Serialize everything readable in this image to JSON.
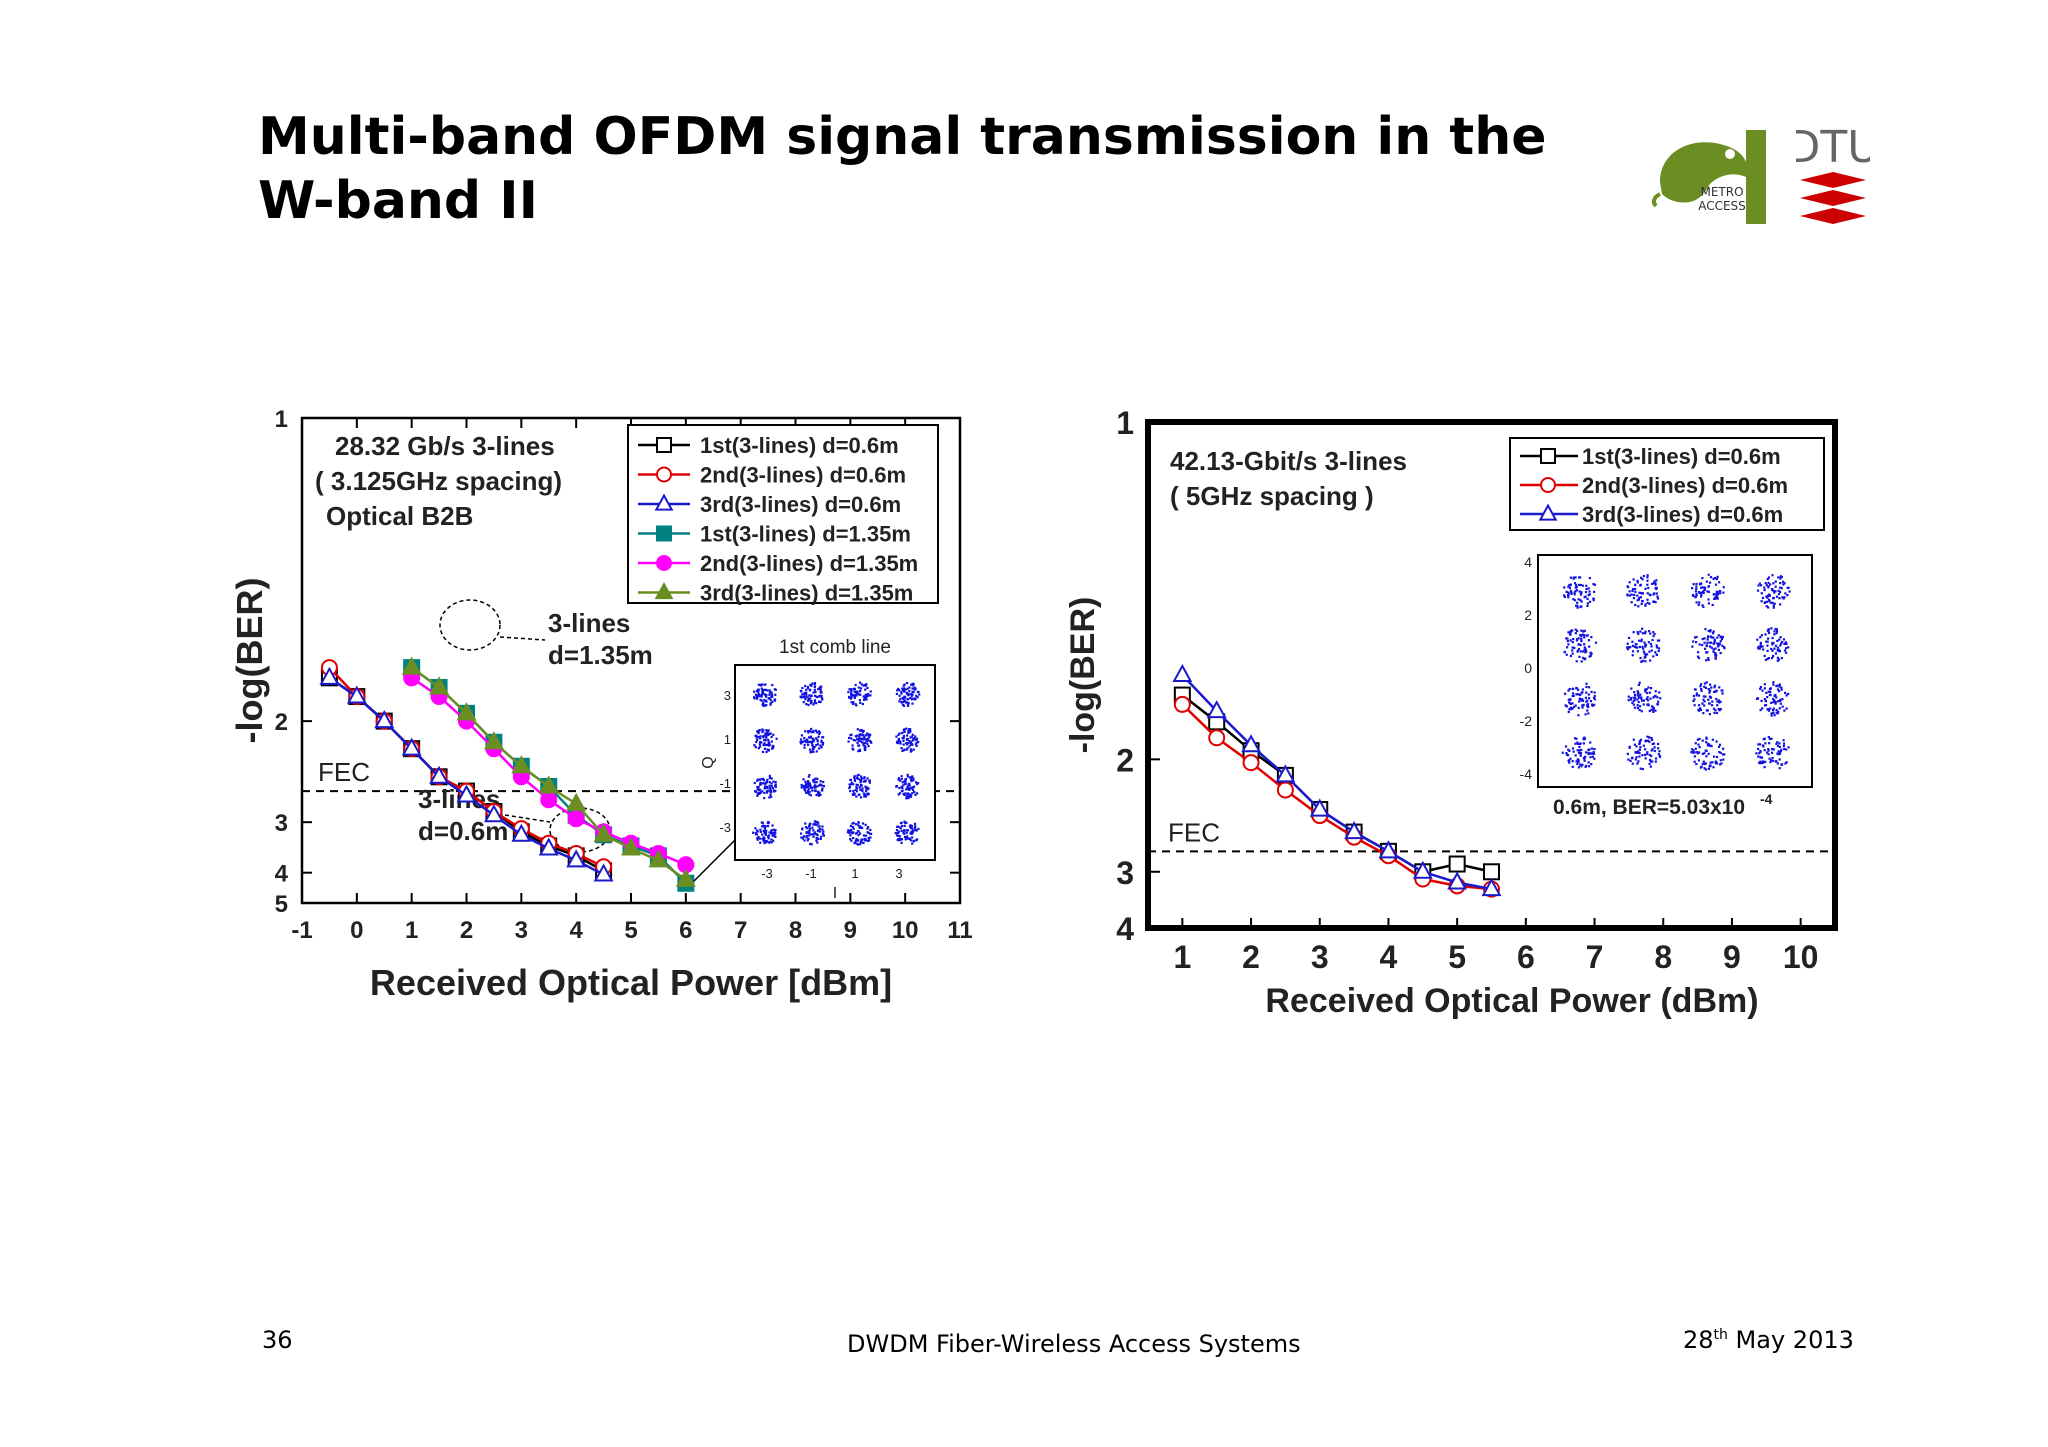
{
  "slide": {
    "title_line1": "Multi-band OFDM signal transmission in the",
    "title_line2": "W-band II",
    "logo_metro_text1": "METRO",
    "logo_metro_text2": "ACCESS",
    "logo_dtu_text": "DTU",
    "footer_page": "36",
    "footer_center": "DWDM Fiber-Wireless Access  Systems",
    "footer_date_day": "28",
    "footer_date_sup": "th",
    "footer_date_rest": " May 2013"
  },
  "chart_data": [
    {
      "type": "line",
      "title": "",
      "xlabel": "Received Optical Power [dBm]",
      "ylabel": "-log(BER)",
      "xlim": [
        -1,
        11
      ],
      "ylim": [
        1,
        5
      ],
      "y_scale": "reciprocal (top=1, bottom=5)",
      "xticks": [
        "-1",
        "0",
        "1",
        "2",
        "3",
        "4",
        "5",
        "6",
        "7",
        "8",
        "9",
        "10",
        "11"
      ],
      "yticks": [
        "1",
        "2",
        "3",
        "4",
        "5"
      ],
      "legend_position": "top-right",
      "annotations": {
        "header1": "28.32 Gb/s 3-lines",
        "header2": "( 3.125GHz spacing)",
        "header3": "Optical B2B",
        "group_a1": "3-lines",
        "group_a2": "d=1.35m",
        "group_b1": "3-lines",
        "group_b2": "d=0.6m",
        "fec": "FEC",
        "fec_level": 2.6,
        "inset_title": "1st comb line",
        "inset_xlabel": "I",
        "inset_ylabel": "Q",
        "inset_ticks": [
          "-3",
          "-1",
          "1",
          "3"
        ]
      },
      "series": [
        {
          "name": "1st(3-lines) d=0.6m",
          "color": "#000000",
          "marker": "square-open",
          "x": [
            -0.5,
            0,
            0.5,
            1,
            1.5,
            2,
            2.5,
            3,
            3.5,
            4,
            4.5
          ],
          "y": [
            1.75,
            1.85,
            2.0,
            2.2,
            2.45,
            2.6,
            2.85,
            3.15,
            3.4,
            3.6,
            3.95
          ]
        },
        {
          "name": "2nd(3-lines) d=0.6m",
          "color": "#e00000",
          "marker": "circle-open",
          "x": [
            -0.5,
            0,
            0.5,
            1,
            1.5,
            2,
            2.5,
            3,
            3.5,
            4,
            4.5
          ],
          "y": [
            1.7,
            1.85,
            2.0,
            2.2,
            2.45,
            2.6,
            2.85,
            3.1,
            3.35,
            3.55,
            3.85
          ]
        },
        {
          "name": "3rd(3-lines) d=0.6m",
          "color": "#1a1acc",
          "marker": "triangle-open",
          "x": [
            -0.5,
            0,
            0.5,
            1,
            1.5,
            2,
            2.5,
            3,
            3.5,
            4,
            4.5
          ],
          "y": [
            1.75,
            1.85,
            2.0,
            2.2,
            2.45,
            2.65,
            2.9,
            3.2,
            3.45,
            3.7,
            4.05
          ]
        },
        {
          "name": "1st(3-lines) d=1.35m",
          "color": "#008080",
          "marker": "square-filled",
          "x": [
            1,
            1.5,
            2,
            2.5,
            3,
            3.5,
            4,
            4.5,
            5,
            5.5,
            6
          ],
          "y": [
            1.7,
            1.8,
            1.95,
            2.15,
            2.35,
            2.55,
            2.9,
            3.2,
            3.4,
            3.6,
            4.3
          ]
        },
        {
          "name": "2nd(3-lines) d=1.35m",
          "color": "#ff00ff",
          "marker": "circle-filled",
          "x": [
            1,
            1.5,
            2,
            2.5,
            3,
            3.5,
            4,
            4.5,
            5,
            5.5,
            6
          ],
          "y": [
            1.75,
            1.85,
            2.0,
            2.2,
            2.45,
            2.7,
            2.95,
            3.15,
            3.35,
            3.55,
            3.8
          ]
        },
        {
          "name": "3rd(3-lines) d=1.35m",
          "color": "#6b8e23",
          "marker": "triangle-filled",
          "x": [
            1,
            1.5,
            2,
            2.5,
            3,
            3.5,
            4,
            4.5,
            5,
            5.5,
            6
          ],
          "y": [
            1.7,
            1.8,
            1.95,
            2.15,
            2.35,
            2.55,
            2.75,
            3.2,
            3.45,
            3.7,
            4.2
          ]
        }
      ]
    },
    {
      "type": "line",
      "title": "",
      "xlabel": "Received Optical Power (dBm)",
      "ylabel": "-log(BER)",
      "xlim": [
        0.5,
        10.5
      ],
      "ylim": [
        1,
        4
      ],
      "y_scale": "reciprocal (top=1, bottom=4)",
      "xticks": [
        "1",
        "2",
        "3",
        "4",
        "5",
        "6",
        "7",
        "8",
        "9",
        "10"
      ],
      "yticks": [
        "1",
        "2",
        "3",
        "4"
      ],
      "legend_position": "top-right",
      "annotations": {
        "header1": "42.13-Gbit/s 3-lines",
        "header2": "( 5GHz spacing )",
        "fec": "FEC",
        "fec_level": 2.75,
        "inset_caption": "0.6m, BER=5.03x10",
        "inset_caption_exp": "-4",
        "inset_xticks": [],
        "inset_yticks": [
          "4",
          "2",
          "0",
          "-2",
          "-4"
        ]
      },
      "series": [
        {
          "name": "1st(3-lines) d=0.6m",
          "color": "#000000",
          "marker": "square-open",
          "x": [
            1,
            1.5,
            2,
            2.5,
            3,
            3.5,
            4,
            4.5,
            5,
            5.5
          ],
          "y": [
            1.68,
            1.8,
            1.95,
            2.1,
            2.35,
            2.55,
            2.75,
            3.0,
            2.9,
            3.0
          ]
        },
        {
          "name": "2nd(3-lines) d=0.6m",
          "color": "#e00000",
          "marker": "circle-open",
          "x": [
            1,
            1.5,
            2,
            2.5,
            3,
            3.5,
            4,
            4.5,
            5,
            5.5
          ],
          "y": [
            1.72,
            1.88,
            2.02,
            2.2,
            2.4,
            2.6,
            2.8,
            3.1,
            3.2,
            3.25
          ]
        },
        {
          "name": "3rd(3-lines) d=0.6m",
          "color": "#1a1acc",
          "marker": "triangle-open",
          "x": [
            1,
            1.5,
            2,
            2.5,
            3,
            3.5,
            4,
            4.5,
            5,
            5.5
          ],
          "y": [
            1.6,
            1.75,
            1.92,
            2.1,
            2.35,
            2.55,
            2.75,
            3.0,
            3.15,
            3.25
          ]
        }
      ]
    }
  ]
}
